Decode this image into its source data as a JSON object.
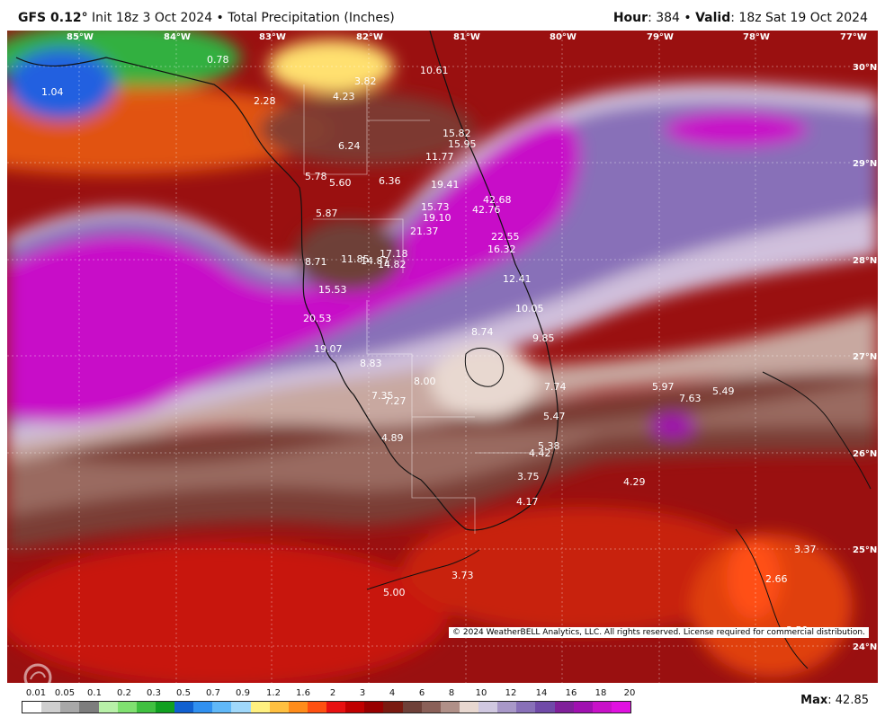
{
  "header": {
    "model": "GFS 0.12",
    "degree": "°",
    "init": " Init 18z 3 Oct 2024 • Total Precipitation (Inches)",
    "hour_label": "Hour",
    "hour_value": ": 384 • ",
    "valid_label": "Valid",
    "valid_value": ": 18z Sat 19 Oct 2024"
  },
  "map": {
    "lon_labels": [
      "85°W",
      "84°W",
      "83°W",
      "82°W",
      "81°W",
      "80°W",
      "79°W",
      "78°W",
      "77°W"
    ],
    "lat_labels": [
      "30°N",
      "29°N",
      "28°N",
      "27°N",
      "26°N",
      "25°N",
      "24°N"
    ],
    "values": [
      "1.04",
      "0.78",
      "2.28",
      "3.82",
      "4.23",
      "10.61",
      "15.82",
      "15.95",
      "6.24",
      "11.77",
      "5.78",
      "5.60",
      "6.36",
      "19.41",
      "42.68",
      "15.73",
      "42.76",
      "19.10",
      "5.87",
      "21.37",
      "22.55",
      "16.32",
      "17.18",
      "11.85",
      "14.87",
      "14.82",
      "8.71",
      "12.41",
      "15.53",
      "10.05",
      "20.53",
      "8.74",
      "9.85",
      "19.07",
      "8.83",
      "8.00",
      "7.74",
      "5.97",
      "7.63",
      "5.49",
      "7.35",
      "7.27",
      "5.47",
      "4.89",
      "5.38",
      "4.42",
      "3.75",
      "4.29",
      "4.17",
      "3.37",
      "2.66",
      "3.73",
      "5.00",
      "3.59"
    ],
    "copyright": "© 2024 WeatherBELL Analytics, LLC. All rights reserved. License required for commercial distribution."
  },
  "legend": {
    "ticks": [
      "0.01",
      "0.05",
      "0.1",
      "0.2",
      "0.3",
      "0.5",
      "0.7",
      "0.9",
      "1.2",
      "1.6",
      "2",
      "3",
      "4",
      "6",
      "8",
      "10",
      "12",
      "14",
      "16",
      "18",
      "20"
    ],
    "colors": [
      "#ffffff",
      "#cfcfcf",
      "#a8a8a8",
      "#7d7d7d",
      "#b8f0a8",
      "#80e070",
      "#40c040",
      "#10a020",
      "#1060d0",
      "#3090f0",
      "#60b8f8",
      "#a0d8fa",
      "#fff080",
      "#ffc040",
      "#ff8c1a",
      "#ff5010",
      "#e81010",
      "#c00000",
      "#980000",
      "#7a1a10",
      "#6e4038",
      "#8a6058",
      "#b09088",
      "#e8d8d0",
      "#d0c8e0",
      "#a898c8",
      "#8870b8",
      "#704aa8",
      "#80209a",
      "#a010b0",
      "#c810c8",
      "#e010e0"
    ],
    "max_label": "Max",
    "max_value": ": 42.85"
  }
}
